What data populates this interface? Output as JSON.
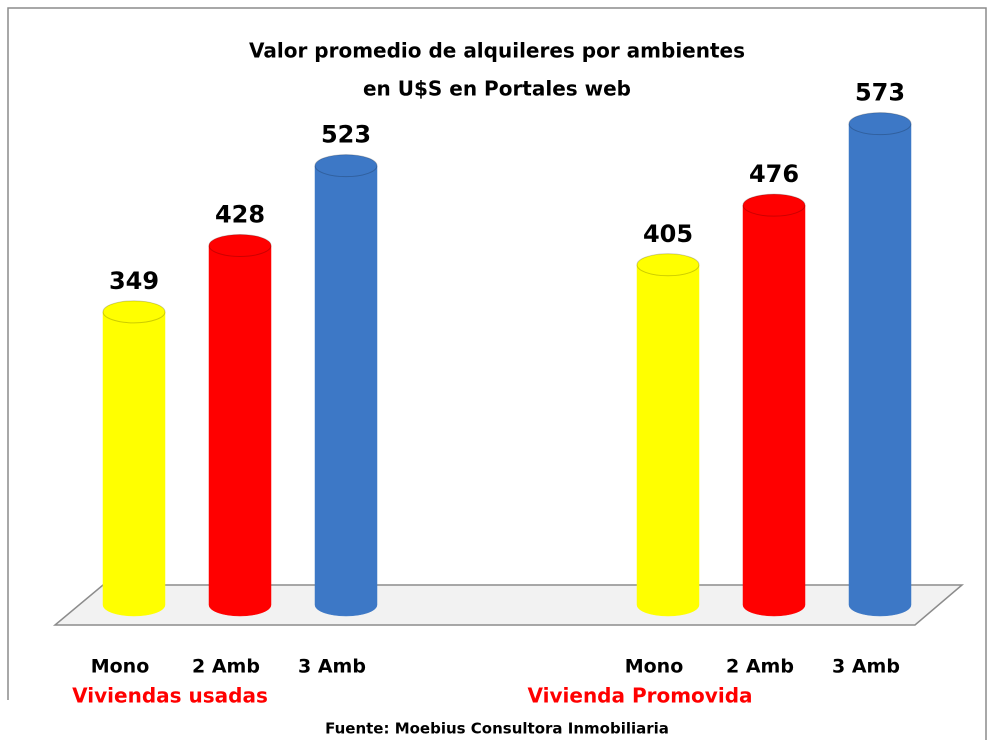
{
  "chart_data": {
    "type": "bar",
    "title": [
      "Valor promedio de alquileres por ambientes",
      "en U$S en Portales web"
    ],
    "colors": [
      "#ffff00",
      "#ff0000",
      "#3d78c6"
    ],
    "groups": [
      {
        "name": "Viviendas usadas",
        "categories": [
          "Mono",
          "2 Amb",
          "3 Amb"
        ],
        "values": [
          349,
          428,
          523
        ]
      },
      {
        "name": "Vivienda Promovida",
        "categories": [
          "Mono",
          "2 Amb",
          "3 Amb"
        ],
        "values": [
          405,
          476,
          573
        ]
      }
    ],
    "source": "Fuente: Moebius Consultora Inmobiliaria"
  }
}
